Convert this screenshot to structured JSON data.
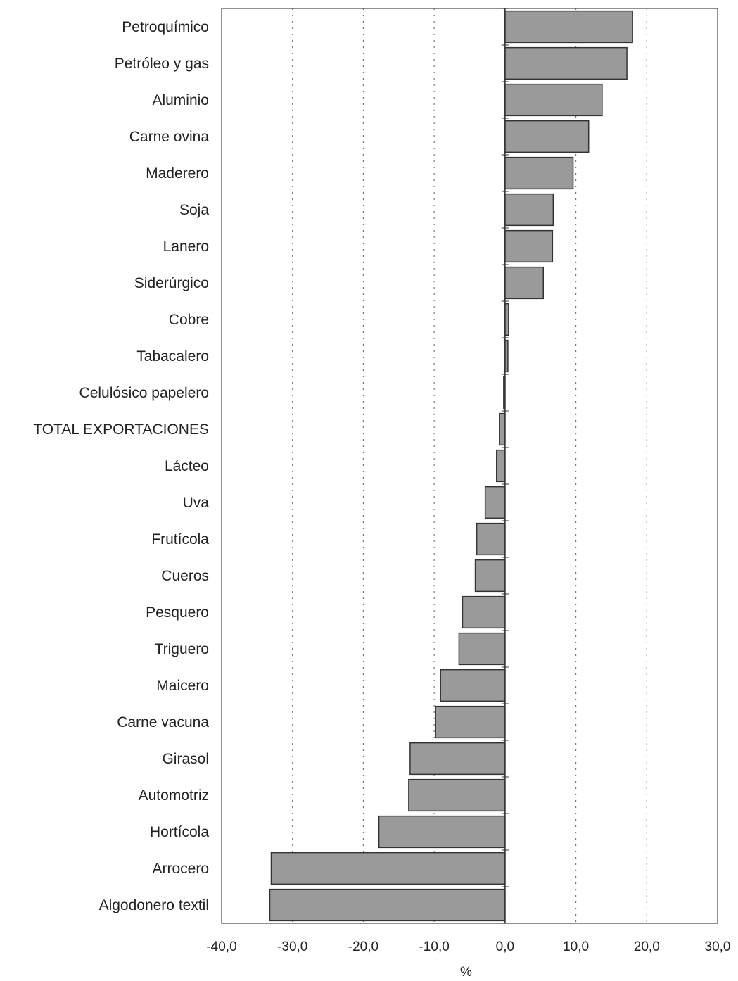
{
  "chart_data": {
    "type": "bar",
    "orientation": "horizontal",
    "title": "",
    "xlabel": "%",
    "ylabel": "",
    "xlim": [
      -40,
      30
    ],
    "xticks": [
      -40,
      -30,
      -20,
      -10,
      0,
      10,
      20,
      30
    ],
    "xtick_labels": [
      "-40,0",
      "-30,0",
      "-20,0",
      "-10,0",
      "0,0",
      "10,0",
      "20,0",
      "30,0"
    ],
    "grid": "vertical dotted",
    "legend": "none",
    "bar_color": "#9a9a9a",
    "categories": [
      "Petroquímico",
      "Petróleo y gas",
      "Aluminio",
      "Carne ovina",
      "Maderero",
      "Soja",
      "Lanero",
      "Siderúrgico",
      "Cobre",
      "Tabacalero",
      "Celulósico papelero",
      "TOTAL EXPORTACIONES",
      "Lácteo",
      "Uva",
      "Frutícola",
      "Cueros",
      "Pesquero",
      "Triguero",
      "Maicero",
      "Carne vacuna",
      "Girasol",
      "Automotriz",
      "Hortícola",
      "Arrocero",
      "Algodonero textil"
    ],
    "values": [
      18.0,
      17.2,
      13.7,
      11.8,
      9.6,
      6.8,
      6.7,
      5.4,
      0.5,
      0.4,
      -0.2,
      -0.8,
      -1.2,
      -2.8,
      -4.0,
      -4.2,
      -6.0,
      -6.5,
      -9.1,
      -9.8,
      -13.4,
      -13.6,
      -17.8,
      -33.0,
      -33.2
    ]
  }
}
